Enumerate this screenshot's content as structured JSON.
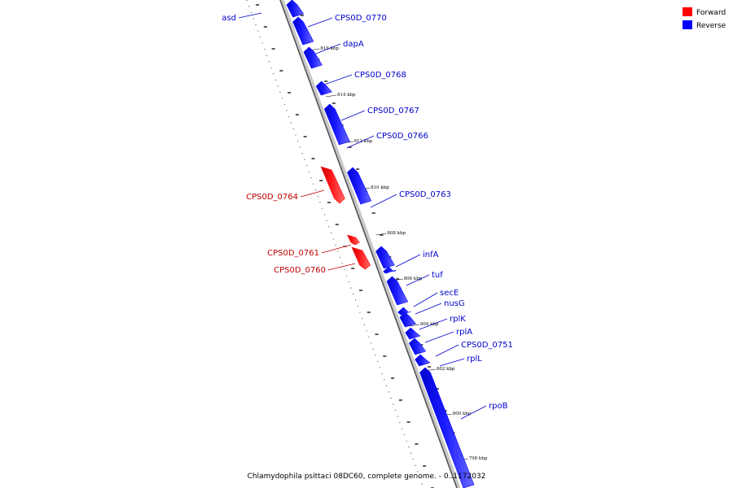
{
  "legend": {
    "forward": {
      "label": "Forward",
      "color": "#ff0000"
    },
    "reverse": {
      "label": "Reverse",
      "color": "#0000ff"
    }
  },
  "caption": "Chlamydophila psittaci 08DC60, complete genome. - 0..1172032",
  "genes": [
    {
      "name": "asd",
      "strand": "reverse"
    },
    {
      "name": "CPS0D_0770",
      "strand": "reverse"
    },
    {
      "name": "dapA",
      "strand": "reverse"
    },
    {
      "name": "CPS0D_0768",
      "strand": "reverse"
    },
    {
      "name": "CPS0D_0767",
      "strand": "reverse"
    },
    {
      "name": "CPS0D_0766",
      "strand": "reverse"
    },
    {
      "name": "CPS0D_0764",
      "strand": "forward"
    },
    {
      "name": "CPS0D_0763",
      "strand": "reverse"
    },
    {
      "name": "CPS0D_0761",
      "strand": "forward"
    },
    {
      "name": "CPS0D_0760",
      "strand": "forward"
    },
    {
      "name": "infA",
      "strand": "reverse"
    },
    {
      "name": "tuf",
      "strand": "reverse"
    },
    {
      "name": "secE",
      "strand": "reverse"
    },
    {
      "name": "nusG",
      "strand": "reverse"
    },
    {
      "name": "rplK",
      "strand": "reverse"
    },
    {
      "name": "rplA",
      "strand": "reverse"
    },
    {
      "name": "CPS0D_0751",
      "strand": "reverse"
    },
    {
      "name": "rplL",
      "strand": "reverse"
    },
    {
      "name": "rpoB",
      "strand": "reverse"
    }
  ],
  "kbp_labels": [
    "816 kbp",
    "814 kbp",
    "812 kbp",
    "810 kbp",
    "808 kbp",
    "806 kbp",
    "804 kbp",
    "802 kbp",
    "800 kbp",
    "798 kbp"
  ]
}
